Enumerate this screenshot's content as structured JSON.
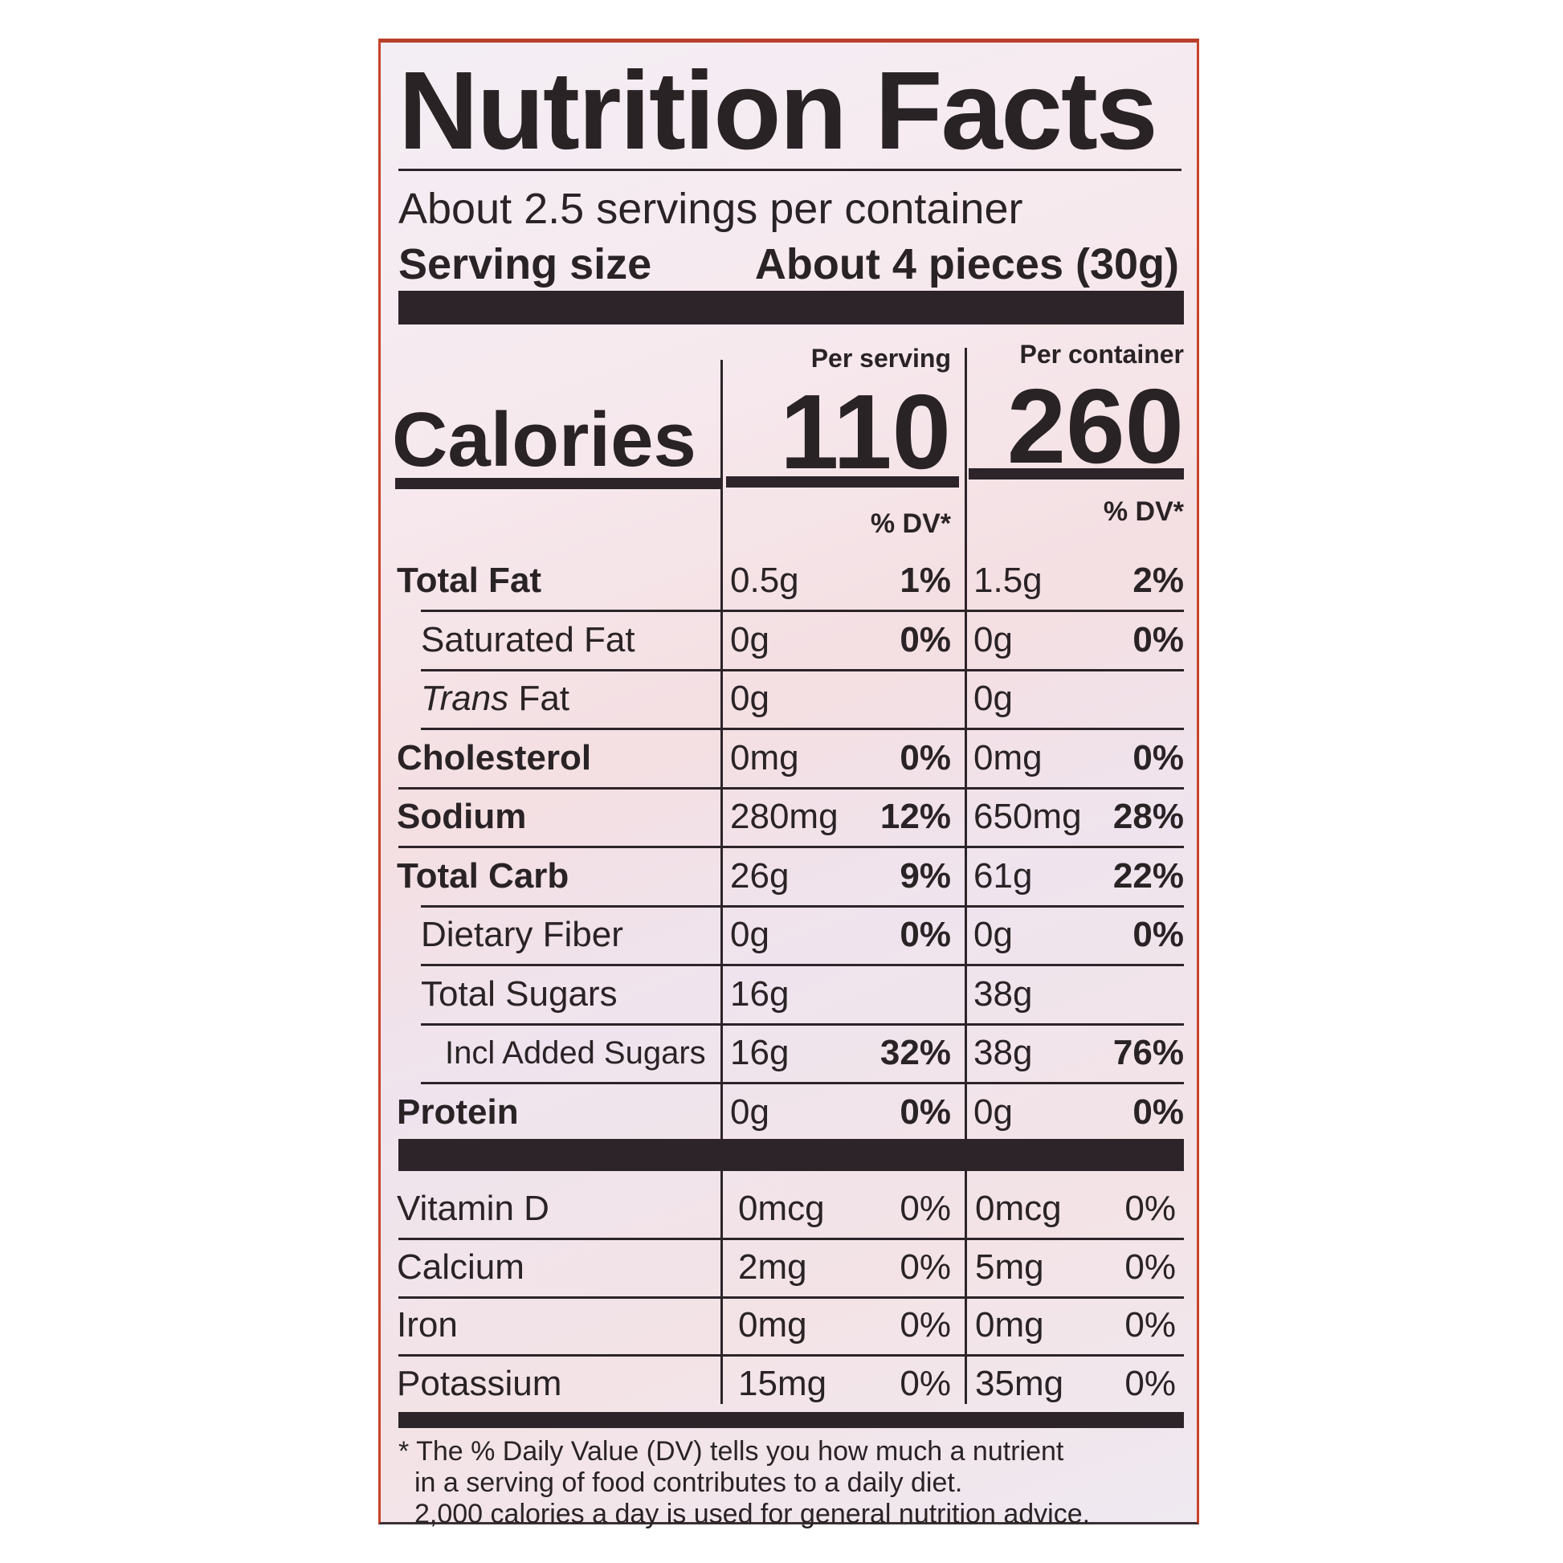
{
  "title": "Nutrition Facts",
  "servings_per_container": "About 2.5 servings per container",
  "serving_size_label": "Serving size",
  "serving_size_value": "About 4 pieces (30g)",
  "per_serving_header": "Per serving",
  "per_container_header": "Per container",
  "calories_label": "Calories",
  "calories_per_serving": "110",
  "calories_per_container": "260",
  "dv_header": "% DV*",
  "nutrients": [
    {
      "label": "Total Fat",
      "bold": true,
      "indent": 0,
      "serv_amt": "0.5g",
      "serv_dv": "1%",
      "cont_amt": "1.5g",
      "cont_dv": "2%"
    },
    {
      "label": "Saturated Fat",
      "bold": false,
      "indent": 1,
      "serv_amt": "0g",
      "serv_dv": "0%",
      "cont_amt": "0g",
      "cont_dv": "0%"
    },
    {
      "label_italic": "Trans",
      "label": " Fat",
      "bold": false,
      "indent": 1,
      "serv_amt": "0g",
      "serv_dv": "",
      "cont_amt": "0g",
      "cont_dv": ""
    },
    {
      "label": "Cholesterol",
      "bold": true,
      "indent": 0,
      "serv_amt": "0mg",
      "serv_dv": "0%",
      "cont_amt": "0mg",
      "cont_dv": "0%"
    },
    {
      "label": "Sodium",
      "bold": true,
      "indent": 0,
      "serv_amt": "280mg",
      "serv_dv": "12%",
      "cont_amt": "650mg",
      "cont_dv": "28%"
    },
    {
      "label": "Total Carb",
      "bold": true,
      "indent": 0,
      "serv_amt": "26g",
      "serv_dv": "9%",
      "cont_amt": "61g",
      "cont_dv": "22%"
    },
    {
      "label": "Dietary Fiber",
      "bold": false,
      "indent": 1,
      "serv_amt": "0g",
      "serv_dv": "0%",
      "cont_amt": "0g",
      "cont_dv": "0%"
    },
    {
      "label": "Total Sugars",
      "bold": false,
      "indent": 1,
      "serv_amt": "16g",
      "serv_dv": "",
      "cont_amt": "38g",
      "cont_dv": ""
    },
    {
      "label": "Incl Added Sugars",
      "bold": false,
      "indent": 2,
      "serv_amt": "16g",
      "serv_dv": "32%",
      "cont_amt": "38g",
      "cont_dv": "76%"
    },
    {
      "label": "Protein",
      "bold": true,
      "indent": 0,
      "serv_amt": "0g",
      "serv_dv": "0%",
      "cont_amt": "0g",
      "cont_dv": "0%"
    }
  ],
  "vitamins": [
    {
      "label": "Vitamin D",
      "serv_amt": "0mcg",
      "serv_dv": "0%",
      "cont_amt": "0mcg",
      "cont_dv": "0%"
    },
    {
      "label": "Calcium",
      "serv_amt": "2mg",
      "serv_dv": "0%",
      "cont_amt": "5mg",
      "cont_dv": "0%"
    },
    {
      "label": "Iron",
      "serv_amt": "0mg",
      "serv_dv": "0%",
      "cont_amt": "0mg",
      "cont_dv": "0%"
    },
    {
      "label": "Potassium",
      "serv_amt": "15mg",
      "serv_dv": "0%",
      "cont_amt": "35mg",
      "cont_dv": "0%"
    }
  ],
  "footnote": [
    "* The % Daily Value (DV) tells you how much a nutrient",
    "in a serving of food contributes to a daily diet.",
    "2,000 calories a day is used for general nutrition advice."
  ]
}
